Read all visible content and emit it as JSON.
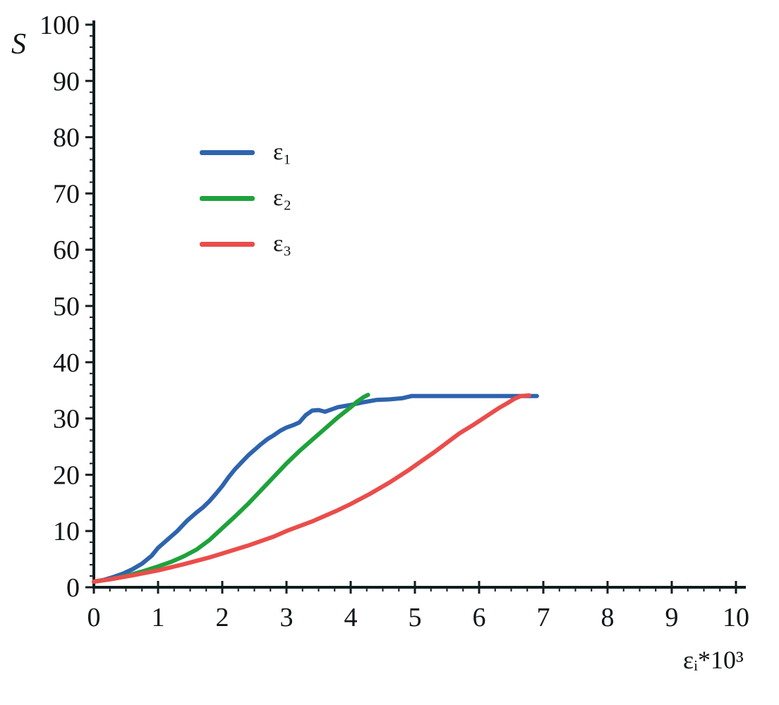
{
  "chart_data": {
    "type": "line",
    "title": "",
    "xlabel": "εᵢ*10³",
    "ylabel": "S",
    "xlim": [
      0,
      10
    ],
    "ylim": [
      0,
      100
    ],
    "x_ticks": [
      0,
      1,
      2,
      3,
      4,
      5,
      6,
      7,
      8,
      9,
      10
    ],
    "y_ticks": [
      0,
      10,
      20,
      30,
      40,
      50,
      60,
      70,
      80,
      90,
      100
    ],
    "x_minor_step": 0.25,
    "y_minor_step": 2,
    "grid": false,
    "legend_position": "upper-left-inside",
    "axis_color": "#101c1e",
    "series": [
      {
        "name": "ε₁",
        "color": "#2e64ae",
        "points": [
          [
            0,
            1
          ],
          [
            0.15,
            1.3
          ],
          [
            0.3,
            1.8
          ],
          [
            0.45,
            2.4
          ],
          [
            0.6,
            3.2
          ],
          [
            0.75,
            4.2
          ],
          [
            0.9,
            5.6
          ],
          [
            1.0,
            7
          ],
          [
            1.15,
            8.5
          ],
          [
            1.3,
            10
          ],
          [
            1.45,
            11.8
          ],
          [
            1.6,
            13.3
          ],
          [
            1.7,
            14.2
          ],
          [
            1.8,
            15.3
          ],
          [
            1.9,
            16.6
          ],
          [
            2.0,
            18
          ],
          [
            2.1,
            19.6
          ],
          [
            2.2,
            21
          ],
          [
            2.3,
            22.2
          ],
          [
            2.4,
            23.4
          ],
          [
            2.5,
            24.4
          ],
          [
            2.6,
            25.4
          ],
          [
            2.7,
            26.3
          ],
          [
            2.8,
            27
          ],
          [
            2.9,
            27.8
          ],
          [
            3.0,
            28.4
          ],
          [
            3.1,
            28.8
          ],
          [
            3.2,
            29.3
          ],
          [
            3.3,
            30.6
          ],
          [
            3.4,
            31.4
          ],
          [
            3.5,
            31.5
          ],
          [
            3.6,
            31.2
          ],
          [
            3.7,
            31.6
          ],
          [
            3.8,
            32
          ],
          [
            3.9,
            32.2
          ],
          [
            4.0,
            32.4
          ],
          [
            4.2,
            32.9
          ],
          [
            4.4,
            33.3
          ],
          [
            4.6,
            33.4
          ],
          [
            4.8,
            33.6
          ],
          [
            4.95,
            34
          ],
          [
            5.2,
            34
          ],
          [
            5.6,
            34
          ],
          [
            6.0,
            34
          ],
          [
            6.4,
            34
          ],
          [
            6.9,
            34
          ]
        ]
      },
      {
        "name": "ε₂",
        "color": "#1ea23b",
        "points": [
          [
            0,
            1
          ],
          [
            0.25,
            1.4
          ],
          [
            0.5,
            2
          ],
          [
            0.75,
            2.8
          ],
          [
            1.0,
            3.7
          ],
          [
            1.2,
            4.5
          ],
          [
            1.4,
            5.5
          ],
          [
            1.6,
            6.7
          ],
          [
            1.8,
            8.4
          ],
          [
            2.0,
            10.5
          ],
          [
            2.2,
            12.6
          ],
          [
            2.4,
            14.8
          ],
          [
            2.5,
            16
          ],
          [
            2.7,
            18.4
          ],
          [
            2.9,
            20.8
          ],
          [
            3.0,
            22
          ],
          [
            3.2,
            24.2
          ],
          [
            3.4,
            26.2
          ],
          [
            3.6,
            28.2
          ],
          [
            3.8,
            30.2
          ],
          [
            4.0,
            32
          ],
          [
            4.1,
            33
          ],
          [
            4.2,
            33.8
          ],
          [
            4.27,
            34.2
          ]
        ]
      },
      {
        "name": "ε₃",
        "color": "#ea4d4b",
        "points": [
          [
            0,
            1
          ],
          [
            0.3,
            1.5
          ],
          [
            0.6,
            2.1
          ],
          [
            1.0,
            3
          ],
          [
            1.4,
            4.1
          ],
          [
            1.8,
            5.3
          ],
          [
            2.0,
            6
          ],
          [
            2.4,
            7.4
          ],
          [
            2.8,
            9
          ],
          [
            3.0,
            10
          ],
          [
            3.4,
            11.7
          ],
          [
            3.8,
            13.7
          ],
          [
            4.0,
            14.8
          ],
          [
            4.3,
            16.6
          ],
          [
            4.6,
            18.6
          ],
          [
            4.9,
            20.8
          ],
          [
            5.1,
            22.4
          ],
          [
            5.3,
            24
          ],
          [
            5.5,
            25.7
          ],
          [
            5.7,
            27.4
          ],
          [
            5.9,
            28.8
          ],
          [
            6.1,
            30.3
          ],
          [
            6.3,
            31.8
          ],
          [
            6.45,
            32.8
          ],
          [
            6.55,
            33.5
          ],
          [
            6.65,
            34
          ],
          [
            6.78,
            34.1
          ]
        ]
      }
    ]
  },
  "labels": {
    "ylabel": "S",
    "xlabel": "εᵢ*10³"
  }
}
